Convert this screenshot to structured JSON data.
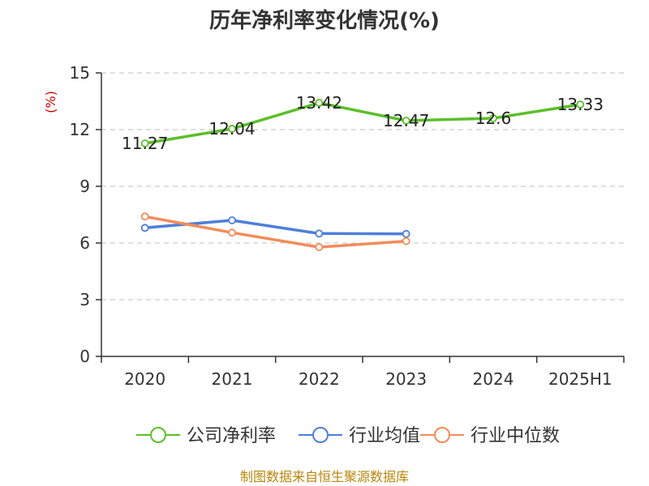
{
  "chart_data": {
    "type": "line",
    "title": "历年净利率变化情况(%)",
    "ylabel": "(%)",
    "categories": [
      "2020",
      "2021",
      "2022",
      "2023",
      "2024",
      "2025H1"
    ],
    "ylim": [
      0,
      15
    ],
    "yticks": [
      "0",
      "3",
      "6",
      "9",
      "12",
      "15"
    ],
    "grid": true,
    "legend_position": "bottom",
    "series": [
      {
        "name": "公司净利率",
        "color": "#5cbf2a",
        "values": [
          11.27,
          12.04,
          13.42,
          12.47,
          12.6,
          13.33
        ],
        "labels": [
          "11.27",
          "12.04",
          "13.42",
          "12.47",
          "12.6",
          "13.33"
        ]
      },
      {
        "name": "行业均值",
        "color": "#4e7fd9",
        "values": [
          6.8,
          7.2,
          6.5,
          6.48,
          null,
          null
        ]
      },
      {
        "name": "行业中位数",
        "color": "#f28c5a",
        "values": [
          7.4,
          6.55,
          5.78,
          6.1,
          null,
          null
        ]
      }
    ]
  },
  "source_note": "制图数据来自恒生聚源数据库"
}
